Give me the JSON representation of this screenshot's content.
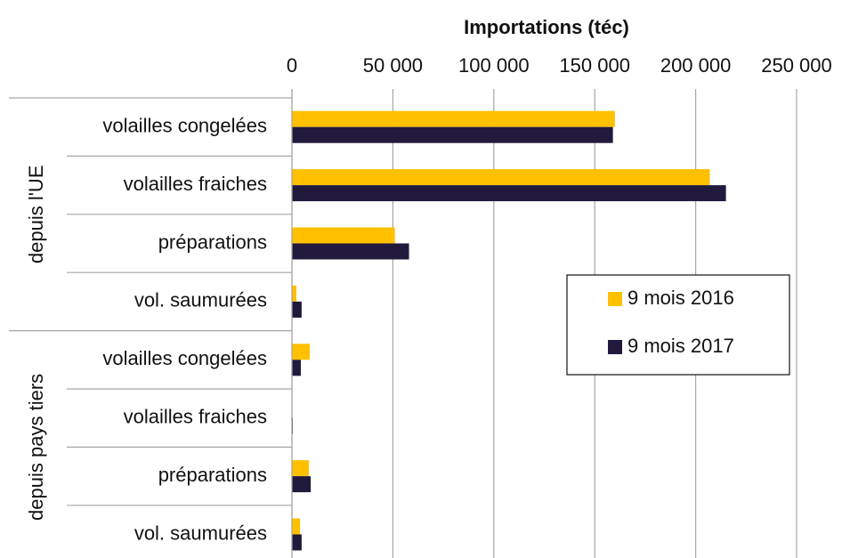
{
  "chart_data": {
    "type": "bar",
    "orientation": "horizontal",
    "title": "Importations (téc)",
    "groups": [
      {
        "label": "depuis l'UE",
        "categories": [
          "volailles congelées",
          "volailles fraiches",
          "préparations",
          "vol. saumurées"
        ]
      },
      {
        "label": "depuis pays tiers",
        "categories": [
          "volailles congelées",
          "volailles fraiches",
          "préparations",
          "vol. saumurées"
        ]
      }
    ],
    "series": [
      {
        "name": "9 mois 2016",
        "color": "#ffc000",
        "values": [
          160000,
          207000,
          51000,
          2200,
          8800,
          0,
          8400,
          4000
        ]
      },
      {
        "name": "9 mois 2017",
        "color": "#211a3d",
        "values": [
          159000,
          215000,
          58000,
          4800,
          4400,
          400,
          9300,
          4800
        ]
      }
    ],
    "xlim": [
      0,
      250000
    ],
    "xticks": [
      0,
      {
        "value": 50000,
        "label": "50 000"
      },
      {
        "value": 100000,
        "label": "100 000"
      },
      {
        "value": 150000,
        "label": "150 000"
      },
      {
        "value": 200000,
        "label": "200 000"
      },
      {
        "value": 250000,
        "label": "250 000"
      }
    ],
    "grid": true,
    "legend": "right"
  }
}
